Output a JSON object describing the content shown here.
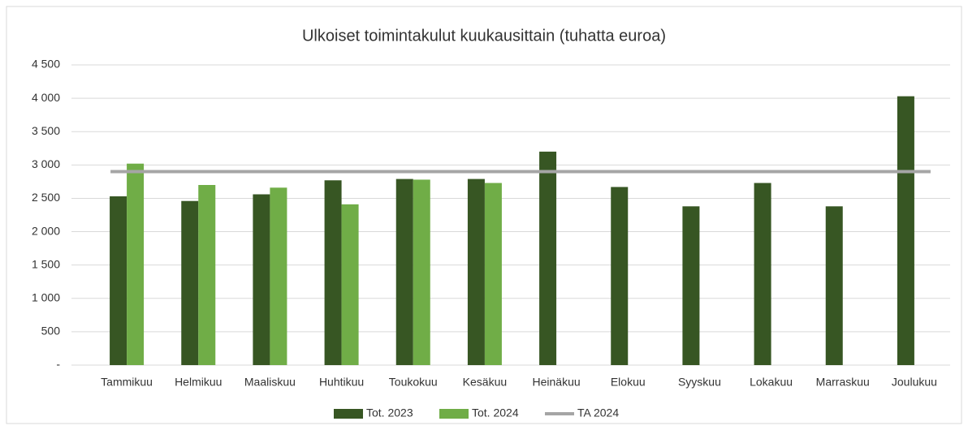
{
  "chart_data": {
    "type": "bar",
    "title": "Ulkoiset toimintakulut kuukausittain (tuhatta euroa)",
    "categories": [
      "Tammikuu",
      "Helmikuu",
      "Maaliskuu",
      "Huhtikuu",
      "Toukokuu",
      "Kesäkuu",
      "Heinäkuu",
      "Elokuu",
      "Syyskuu",
      "Lokakuu",
      "Marraskuu",
      "Joulukuu"
    ],
    "series": [
      {
        "name": "Tot. 2023",
        "color": "#375623",
        "type": "bar",
        "values": [
          2530,
          2460,
          2560,
          2770,
          2790,
          2790,
          3200,
          2670,
          2380,
          2730,
          2380,
          4030
        ]
      },
      {
        "name": "Tot. 2024",
        "color": "#70ad47",
        "type": "bar",
        "values": [
          3020,
          2700,
          2660,
          2410,
          2780,
          2730,
          null,
          null,
          null,
          null,
          null,
          null
        ]
      },
      {
        "name": "TA 2024",
        "color": "#a5a5a5",
        "type": "line",
        "values": [
          2900,
          2900,
          2900,
          2900,
          2900,
          2900,
          2900,
          2900,
          2900,
          2900,
          2900,
          2900
        ]
      }
    ],
    "ylim": [
      0,
      4500
    ],
    "yticks": [
      {
        "value": 0,
        "label": "-"
      },
      500,
      {
        "value": 1000,
        "label": "1 000"
      },
      {
        "value": 1500,
        "label": "1 500"
      },
      {
        "value": 2000,
        "label": "2 000"
      },
      {
        "value": 2500,
        "label": "2 500"
      },
      {
        "value": 3000,
        "label": "3 000"
      },
      {
        "value": 3500,
        "label": "3 500"
      },
      {
        "value": 4000,
        "label": "4 000"
      },
      {
        "value": 4500,
        "label": "4 500"
      }
    ],
    "grid": true,
    "legend": "bottom"
  }
}
